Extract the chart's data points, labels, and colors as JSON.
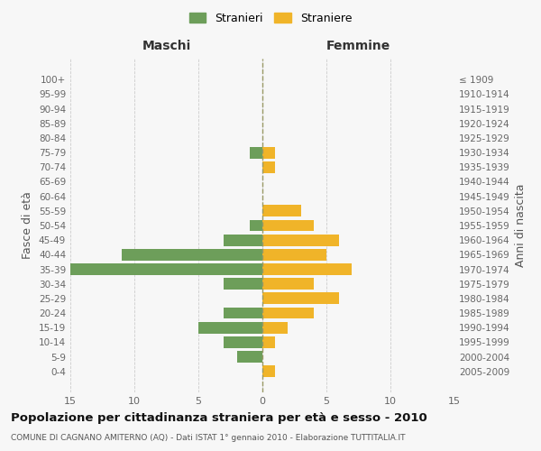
{
  "age_groups": [
    "100+",
    "95-99",
    "90-94",
    "85-89",
    "80-84",
    "75-79",
    "70-74",
    "65-69",
    "60-64",
    "55-59",
    "50-54",
    "45-49",
    "40-44",
    "35-39",
    "30-34",
    "25-29",
    "20-24",
    "15-19",
    "10-14",
    "5-9",
    "0-4"
  ],
  "birth_years": [
    "≤ 1909",
    "1910-1914",
    "1915-1919",
    "1920-1924",
    "1925-1929",
    "1930-1934",
    "1935-1939",
    "1940-1944",
    "1945-1949",
    "1950-1954",
    "1955-1959",
    "1960-1964",
    "1965-1969",
    "1970-1974",
    "1975-1979",
    "1980-1984",
    "1985-1989",
    "1990-1994",
    "1995-1999",
    "2000-2004",
    "2005-2009"
  ],
  "maschi": [
    0,
    0,
    0,
    0,
    0,
    1,
    0,
    0,
    0,
    0,
    1,
    3,
    11,
    15,
    3,
    0,
    3,
    5,
    3,
    2,
    0
  ],
  "femmine": [
    0,
    0,
    0,
    0,
    0,
    1,
    1,
    0,
    0,
    3,
    4,
    6,
    5,
    7,
    4,
    6,
    4,
    2,
    1,
    0,
    1
  ],
  "male_color": "#6d9e5a",
  "female_color": "#f0b429",
  "bar_height": 0.8,
  "xlim": 15,
  "title": "Popolazione per cittadinanza straniera per età e sesso - 2010",
  "subtitle": "COMUNE DI CAGNANO AMITERNO (AQ) - Dati ISTAT 1° gennaio 2010 - Elaborazione TUTTITALIA.IT",
  "ylabel_left": "Fasce di età",
  "ylabel_right": "Anni di nascita",
  "legend_stranieri": "Stranieri",
  "legend_straniere": "Straniere",
  "maschi_label": "Maschi",
  "femmine_label": "Femmine",
  "bg_color": "#f7f7f7",
  "grid_color": "#cccccc"
}
